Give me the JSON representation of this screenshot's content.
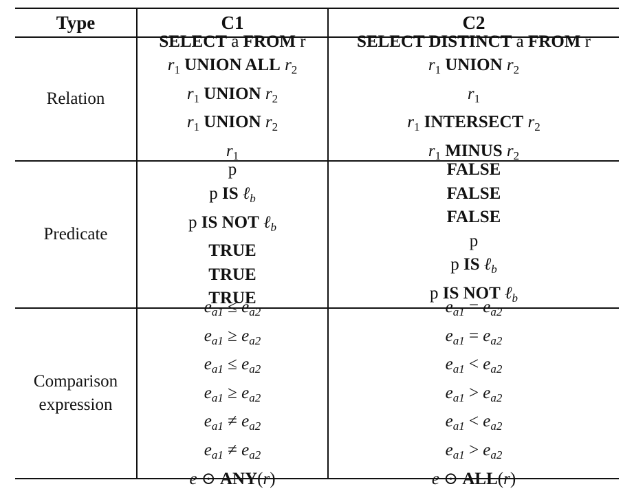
{
  "table": {
    "headers": {
      "type": "Type",
      "c1": "C1",
      "c2": "C2"
    },
    "sections": [
      {
        "type_lines": [
          "Relation"
        ],
        "c1": [
          [
            "SELECT",
            " a ",
            "FROM",
            " r"
          ],
          [
            "r",
            "1",
            " ",
            "UNION ALL",
            " ",
            "r",
            "2"
          ],
          [
            "r",
            "1",
            " ",
            "UNION",
            " ",
            "r",
            "2"
          ],
          [
            "r",
            "1",
            " ",
            "UNION",
            " ",
            "r",
            "2"
          ],
          [
            "r",
            "1"
          ]
        ],
        "c2": [
          [
            "SELECT DISTINCT",
            " a ",
            "FROM",
            " r"
          ],
          [
            "r",
            "1",
            " ",
            "UNION",
            " ",
            "r",
            "2"
          ],
          [
            "r",
            "1"
          ],
          [
            "r",
            "1",
            " ",
            "INTERSECT",
            " ",
            "r",
            "2"
          ],
          [
            "r",
            "1",
            " ",
            "MINUS",
            " ",
            "r",
            "2"
          ]
        ]
      },
      {
        "type_lines": [
          "Predicate"
        ],
        "c1": [
          [
            "p"
          ],
          [
            "p ",
            "IS",
            " ",
            "ℓ",
            "b"
          ],
          [
            "p ",
            "IS NOT",
            " ",
            "ℓ",
            "b"
          ],
          [
            "TRUE"
          ],
          [
            "TRUE"
          ],
          [
            "TRUE"
          ]
        ],
        "c2": [
          [
            "FALSE"
          ],
          [
            "FALSE"
          ],
          [
            "FALSE"
          ],
          [
            "p"
          ],
          [
            "p ",
            "IS",
            " ",
            "ℓ",
            "b"
          ],
          [
            "p ",
            "IS NOT",
            " ",
            "ℓ",
            "b"
          ]
        ]
      },
      {
        "type_lines": [
          "Comparison",
          "expression"
        ],
        "c1": [
          [
            "e",
            "a1",
            " ≤ ",
            "e",
            "a2"
          ],
          [
            "e",
            "a1",
            " ≥ ",
            "e",
            "a2"
          ],
          [
            "e",
            "a1",
            " ≤ ",
            "e",
            "a2"
          ],
          [
            "e",
            "a1",
            " ≥ ",
            "e",
            "a2"
          ],
          [
            "e",
            "a1",
            " ≠ ",
            "e",
            "a2"
          ],
          [
            "e",
            "a1",
            " ≠ ",
            "e",
            "a2"
          ],
          [
            "e",
            " ⊙ ",
            "ANY",
            "(",
            "r",
            ")"
          ]
        ],
        "c2": [
          [
            "e",
            "a1",
            " = ",
            "e",
            "a2"
          ],
          [
            "e",
            "a1",
            " = ",
            "e",
            "a2"
          ],
          [
            "e",
            "a1",
            " < ",
            "e",
            "a2"
          ],
          [
            "e",
            "a1",
            " > ",
            "e",
            "a2"
          ],
          [
            "e",
            "a1",
            " < ",
            "e",
            "a2"
          ],
          [
            "e",
            "a1",
            " > ",
            "e",
            "a2"
          ],
          [
            "e",
            " ⊙ ",
            "ALL",
            "(",
            "r",
            ")"
          ]
        ]
      }
    ]
  }
}
